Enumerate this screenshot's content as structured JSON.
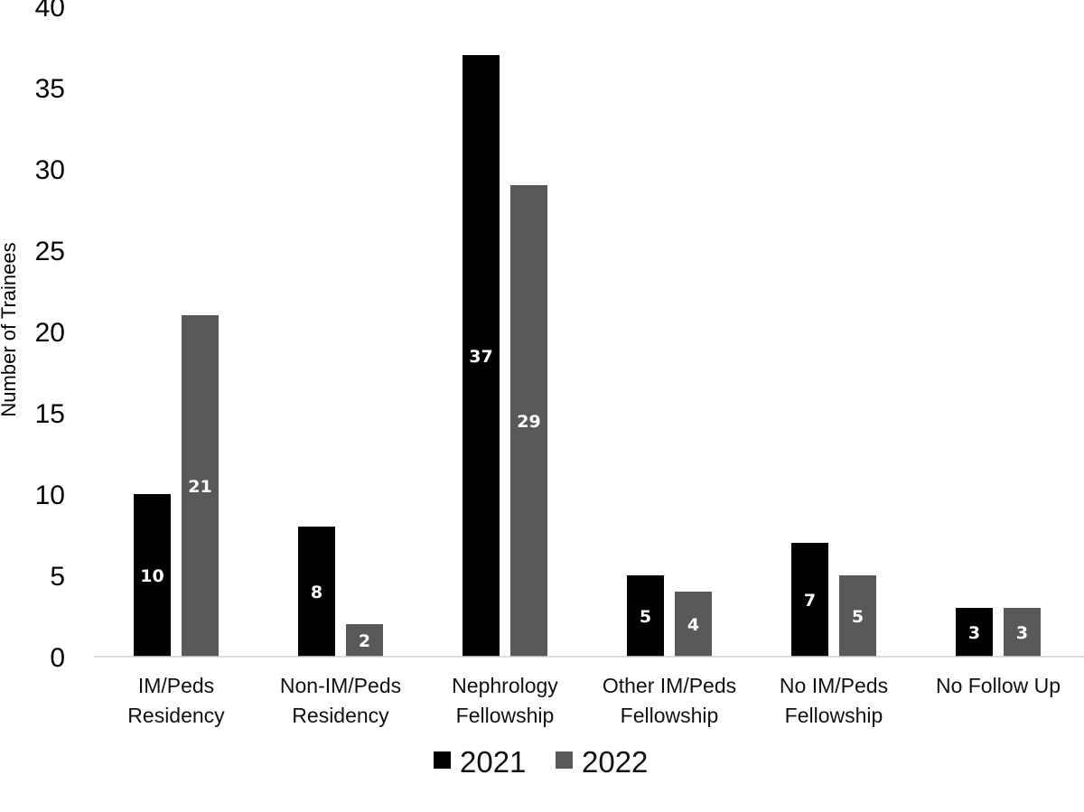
{
  "chart_data": {
    "type": "bar",
    "ylabel": "Number of Trainees",
    "xlabel": "",
    "ylim": [
      0,
      40
    ],
    "yticks": [
      0,
      5,
      10,
      15,
      20,
      25,
      30,
      35,
      40
    ],
    "grid": false,
    "legend_position": "bottom",
    "categories": [
      [
        "IM/Peds",
        "Residency"
      ],
      [
        "Non-IM/Peds",
        "Residency"
      ],
      [
        "Nephrology",
        "Fellowship"
      ],
      [
        "Other IM/Peds",
        "Fellowship"
      ],
      [
        "No IM/Peds",
        "Fellowship"
      ],
      [
        "No Follow Up"
      ]
    ],
    "series": [
      {
        "name": "2021",
        "color": "#000000",
        "values": [
          10,
          8,
          37,
          5,
          7,
          3
        ]
      },
      {
        "name": "2022",
        "color": "#595959",
        "values": [
          21,
          2,
          29,
          4,
          5,
          3
        ]
      }
    ]
  }
}
